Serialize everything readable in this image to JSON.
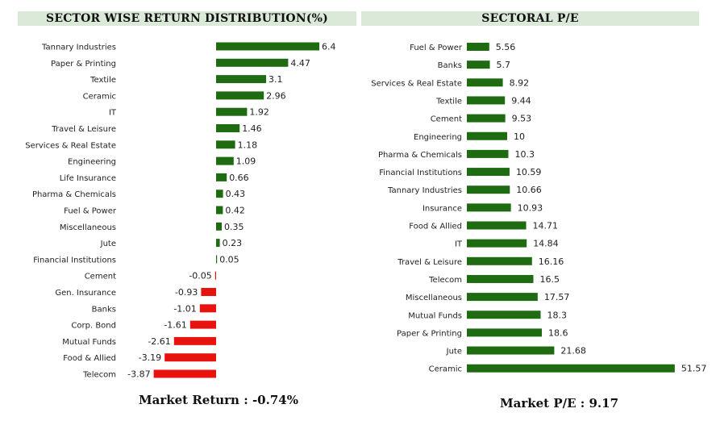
{
  "chart_data": [
    {
      "type": "bar",
      "orientation": "horizontal",
      "title": "SECTOR WISE RETURN DISTRIBUTION(%)",
      "categories": [
        "Tannary Industries",
        "Paper & Printing",
        "Textile",
        "Ceramic",
        "IT",
        "Travel & Leisure",
        "Services & Real Estate",
        "Engineering",
        "Life Insurance",
        "Pharma & Chemicals",
        "Fuel & Power",
        "Miscellaneous",
        "Jute",
        "Financial Institutions",
        "Cement",
        "Gen. Insurance",
        "Banks",
        "Corp. Bond",
        "Mutual Funds",
        "Food & Allied",
        "Telecom"
      ],
      "values": [
        6.4,
        4.47,
        3.1,
        2.96,
        1.92,
        1.46,
        1.18,
        1.09,
        0.66,
        0.43,
        0.42,
        0.35,
        0.23,
        0.05,
        -0.05,
        -0.93,
        -1.01,
        -1.61,
        -2.61,
        -3.19,
        -3.87
      ],
      "value_labels": [
        "6.4",
        "4.47",
        "3.1",
        "2.96",
        "1.92",
        "1.46",
        "1.18",
        "1.09",
        "0.66",
        "0.43",
        "0.42",
        "0.35",
        "0.23",
        "0.05",
        "-0.05",
        "-0.93",
        "-1.01",
        "-1.61",
        "-2.61",
        "-3.19",
        "-3.87"
      ],
      "positive_color": "#1f6b12",
      "negative_color": "#e8130f",
      "footer": "Market Return : -0.74%"
    },
    {
      "type": "bar",
      "orientation": "horizontal",
      "title": "SECTORAL P/E",
      "categories": [
        "Fuel & Power",
        "Banks",
        "Services & Real Estate",
        "Textile",
        "Cement",
        "Engineering",
        "Pharma & Chemicals",
        "Financial Institutions",
        "Tannary Industries",
        "Insurance",
        "Food & Allied",
        "IT",
        "Travel & Leisure",
        "Telecom",
        "Miscellaneous",
        "Mutual Funds",
        "Paper & Printing",
        "Jute",
        "Ceramic"
      ],
      "values": [
        5.56,
        5.7,
        8.92,
        9.44,
        9.53,
        10,
        10.3,
        10.59,
        10.66,
        10.93,
        14.71,
        14.84,
        16.16,
        16.5,
        17.57,
        18.3,
        18.6,
        21.68,
        51.57
      ],
      "value_labels": [
        "5.56",
        "5.7",
        "8.92",
        "9.44",
        "9.53",
        "10",
        "10.3",
        "10.59",
        "10.66",
        "10.93",
        "14.71",
        "14.84",
        "16.16",
        "16.5",
        "17.57",
        "18.3",
        "18.6",
        "21.68",
        "51.57"
      ],
      "bar_color": "#1f6b12",
      "footer": "Market P/E : 9.17"
    }
  ]
}
